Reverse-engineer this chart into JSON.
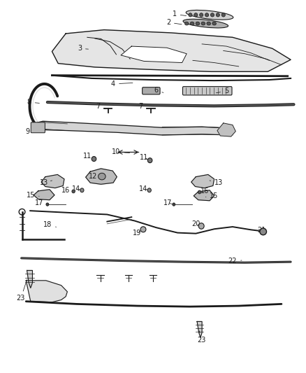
{
  "bg_color": "#ffffff",
  "lc": "#1a1a1a",
  "fs": 7.0,
  "figw": 4.38,
  "figh": 5.33,
  "dpi": 100,
  "parts_labels": [
    [
      1,
      0.57,
      0.962,
      0.615,
      0.957
    ],
    [
      2,
      0.55,
      0.94,
      0.6,
      0.934
    ],
    [
      3,
      0.26,
      0.87,
      0.295,
      0.868
    ],
    [
      4,
      0.37,
      0.775,
      0.44,
      0.778
    ],
    [
      5,
      0.74,
      0.756,
      0.7,
      0.75
    ],
    [
      6,
      0.51,
      0.758,
      0.54,
      0.75
    ],
    [
      7,
      0.32,
      0.714,
      0.353,
      0.707
    ],
    [
      7,
      0.46,
      0.714,
      0.492,
      0.707
    ],
    [
      8,
      0.095,
      0.726,
      0.135,
      0.723
    ],
    [
      9,
      0.09,
      0.648,
      0.135,
      0.648
    ],
    [
      10,
      0.38,
      0.592,
      0.43,
      0.59
    ],
    [
      11,
      0.285,
      0.582,
      0.307,
      0.574
    ],
    [
      11,
      0.47,
      0.578,
      0.49,
      0.57
    ],
    [
      12,
      0.305,
      0.528,
      0.33,
      0.524
    ],
    [
      13,
      0.145,
      0.51,
      0.17,
      0.516
    ],
    [
      13,
      0.715,
      0.51,
      0.685,
      0.516
    ],
    [
      14,
      0.248,
      0.494,
      0.268,
      0.49
    ],
    [
      14,
      0.468,
      0.494,
      0.488,
      0.49
    ],
    [
      15,
      0.1,
      0.476,
      0.128,
      0.474
    ],
    [
      15,
      0.7,
      0.474,
      0.672,
      0.472
    ],
    [
      16,
      0.215,
      0.49,
      0.24,
      0.487
    ],
    [
      16,
      0.67,
      0.488,
      0.652,
      0.485
    ],
    [
      17,
      0.128,
      0.456,
      0.155,
      0.452
    ],
    [
      17,
      0.548,
      0.456,
      0.568,
      0.452
    ],
    [
      18,
      0.155,
      0.398,
      0.19,
      0.39
    ],
    [
      19,
      0.448,
      0.376,
      0.468,
      0.385
    ],
    [
      20,
      0.64,
      0.4,
      0.658,
      0.395
    ],
    [
      21,
      0.855,
      0.382,
      0.84,
      0.388
    ],
    [
      22,
      0.76,
      0.3,
      0.79,
      0.302
    ],
    [
      23,
      0.068,
      0.2,
      0.09,
      0.255
    ],
    [
      23,
      0.658,
      0.088,
      0.65,
      0.118
    ]
  ]
}
